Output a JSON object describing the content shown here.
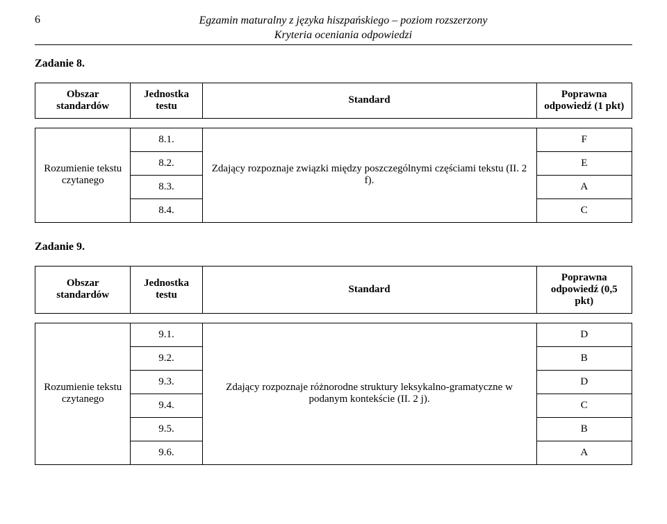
{
  "header": {
    "page_number": "6",
    "title_line1": "Egzamin maturalny z języka hiszpańskiego – poziom rozszerzony",
    "title_line2": "Kryteria oceniania odpowiedzi"
  },
  "task8": {
    "label": "Zadanie 8.",
    "columns": {
      "obszar": "Obszar standardów",
      "jednostka": "Jednostka testu",
      "standard": "Standard",
      "poprawna": "Poprawna odpowiedź (1 pkt)"
    },
    "obszar_text": "Rozumienie tekstu czytanego",
    "standard_text": "Zdający rozpoznaje związki między poszczególnymi częściami tekstu (II. 2 f).",
    "rows": [
      {
        "jedn": "8.1.",
        "ans": "F"
      },
      {
        "jedn": "8.2.",
        "ans": "E"
      },
      {
        "jedn": "8.3.",
        "ans": "A"
      },
      {
        "jedn": "8.4.",
        "ans": "C"
      }
    ]
  },
  "task9": {
    "label": "Zadanie 9.",
    "columns": {
      "obszar": "Obszar standardów",
      "jednostka": "Jednostka testu",
      "standard": "Standard",
      "poprawna": "Poprawna odpowiedź (0,5 pkt)"
    },
    "obszar_text": "Rozumienie tekstu czytanego",
    "standard_text": "Zdający rozpoznaje różnorodne struktury leksykalno-gramatyczne w podanym kontekście (II. 2 j).",
    "rows": [
      {
        "jedn": "9.1.",
        "ans": "D"
      },
      {
        "jedn": "9.2.",
        "ans": "B"
      },
      {
        "jedn": "9.3.",
        "ans": "D"
      },
      {
        "jedn": "9.4.",
        "ans": "C"
      },
      {
        "jedn": "9.5.",
        "ans": "B"
      },
      {
        "jedn": "9.6.",
        "ans": "A"
      }
    ]
  }
}
